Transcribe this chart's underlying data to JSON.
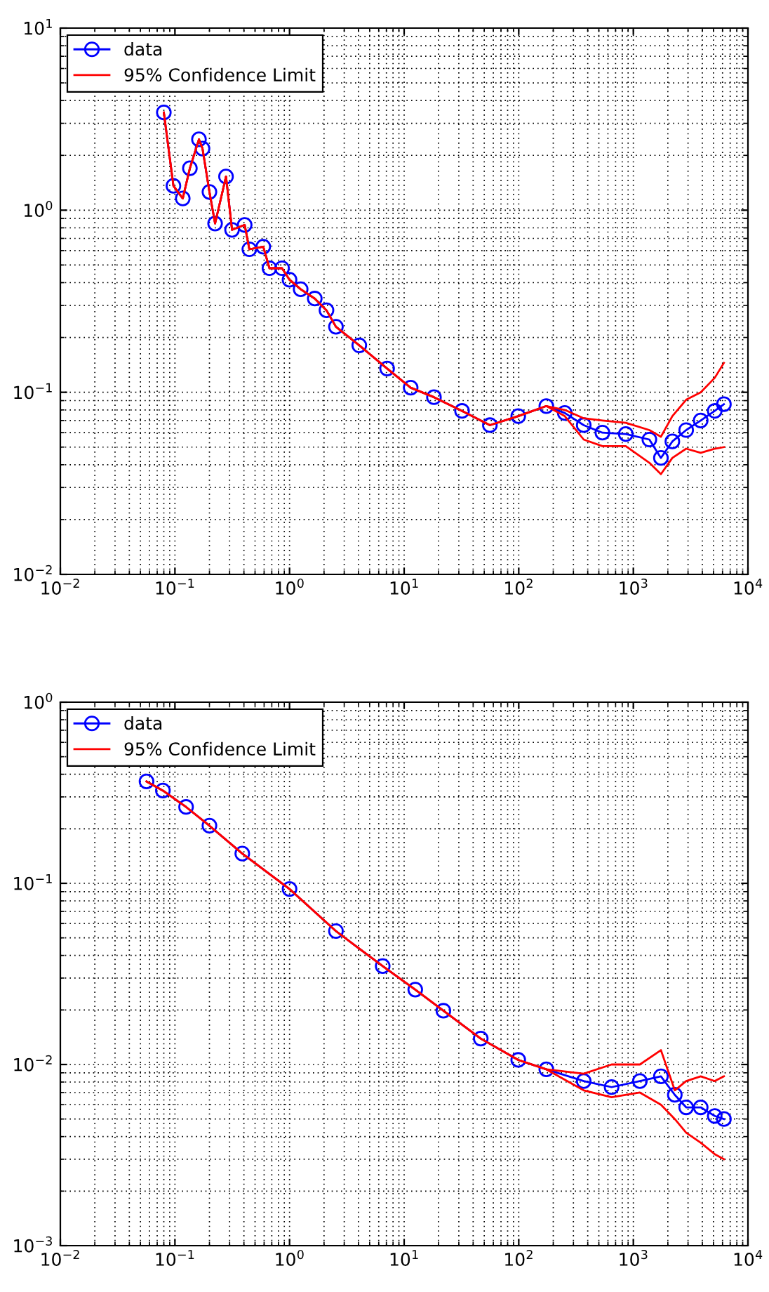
{
  "chart_data": [
    {
      "type": "line",
      "log": "xy",
      "grid": true,
      "legend": "top left",
      "xlim": [
        0.01,
        10000
      ],
      "ylim": [
        0.01,
        10
      ],
      "xticks": [
        {
          "value": 0.01,
          "label": "10$^{−2}$"
        },
        {
          "value": 0.1,
          "label": "10$^{−1}$"
        },
        {
          "value": 1,
          "label": "10$^{0}$"
        },
        {
          "value": 10,
          "label": "10$^{1}$"
        },
        {
          "value": 100,
          "label": "10$^{2}$"
        },
        {
          "value": 1000,
          "label": "10$^{3}$"
        },
        {
          "value": 10000,
          "label": "10$^{4}$"
        }
      ],
      "yticks": [
        {
          "value": 0.01,
          "label": "10$^{−2}$"
        },
        {
          "value": 0.1,
          "label": "10$^{−1}$"
        },
        {
          "value": 1,
          "label": "10$^{0}$"
        },
        {
          "value": 10,
          "label": "10$^{1}$"
        }
      ],
      "x": [
        0.08,
        0.097,
        0.117,
        0.135,
        0.162,
        0.174,
        0.2,
        0.224,
        0.279,
        0.315,
        0.406,
        0.446,
        0.59,
        0.668,
        0.86,
        1.0,
        1.25,
        1.66,
        2.1,
        2.54,
        4.06,
        7.1,
        11.4,
        18.2,
        32,
        56,
        99,
        174,
        252,
        369,
        537,
        859,
        1380,
        1740,
        2190,
        2890,
        3870,
        5130,
        6170
      ],
      "series": [
        {
          "name": "data",
          "color": "#0000ff",
          "marker": "circle",
          "values": [
            3.44,
            1.36,
            1.16,
            1.7,
            2.45,
            2.18,
            1.26,
            0.845,
            1.53,
            0.78,
            0.83,
            0.61,
            0.63,
            0.48,
            0.48,
            0.415,
            0.368,
            0.327,
            0.282,
            0.229,
            0.181,
            0.135,
            0.106,
            0.094,
            0.079,
            0.066,
            0.074,
            0.084,
            0.077,
            0.066,
            0.06,
            0.059,
            0.055,
            0.0436,
            0.0537,
            0.062,
            0.07,
            0.079,
            0.086
          ]
        },
        {
          "name": "95% Confidence Limit",
          "color": "#ff0000",
          "marker": "none",
          "values": [
            3.44,
            1.36,
            1.16,
            1.7,
            2.45,
            2.18,
            1.26,
            0.845,
            1.53,
            0.78,
            0.83,
            0.61,
            0.63,
            0.48,
            0.48,
            0.415,
            0.368,
            0.327,
            0.282,
            0.229,
            0.181,
            0.135,
            0.106,
            0.094,
            0.079,
            0.066,
            0.074,
            0.084,
            0.08,
            0.072,
            0.07,
            0.068,
            0.062,
            0.057,
            0.074,
            0.091,
            0.1,
            0.12,
            0.145
          ]
        },
        {
          "color": "#ff0000",
          "marker": "none",
          "values": [
            3.44,
            1.36,
            1.16,
            1.7,
            2.45,
            2.18,
            1.26,
            0.845,
            1.53,
            0.78,
            0.83,
            0.61,
            0.63,
            0.48,
            0.48,
            0.415,
            0.368,
            0.327,
            0.282,
            0.229,
            0.181,
            0.135,
            0.106,
            0.094,
            0.079,
            0.066,
            0.074,
            0.084,
            0.074,
            0.055,
            0.0506,
            0.0506,
            0.041,
            0.0355,
            0.0436,
            0.049,
            0.0465,
            0.049,
            0.05
          ]
        }
      ]
    },
    {
      "type": "line",
      "log": "xy",
      "grid": true,
      "legend": "top left",
      "xlim": [
        0.01,
        10000
      ],
      "ylim": [
        0.001,
        1
      ],
      "xticks": [
        {
          "value": 0.01,
          "label": "10$^{−2}$"
        },
        {
          "value": 0.1,
          "label": "10$^{−1}$"
        },
        {
          "value": 1,
          "label": "10$^{0}$"
        },
        {
          "value": 10,
          "label": "10$^{1}$"
        },
        {
          "value": 100,
          "label": "10$^{2}$"
        },
        {
          "value": 1000,
          "label": "10$^{3}$"
        },
        {
          "value": 10000,
          "label": "10$^{4}$"
        }
      ],
      "yticks": [
        {
          "value": 0.001,
          "label": "10$^{−3}$"
        },
        {
          "value": 0.01,
          "label": "10$^{−2}$"
        },
        {
          "value": 0.1,
          "label": "10$^{−1}$"
        },
        {
          "value": 1,
          "label": "10$^{0}$"
        }
      ],
      "x": [
        0.0565,
        0.0785,
        0.125,
        0.2,
        0.387,
        1.0,
        2.54,
        6.5,
        12.5,
        22,
        46.6,
        99,
        174,
        369,
        646,
        1140,
        1740,
        2300,
        2890,
        3870,
        5130,
        6170
      ],
      "series": [
        {
          "name": "data",
          "color": "#0000ff",
          "marker": "circle",
          "values": [
            0.365,
            0.325,
            0.264,
            0.208,
            0.146,
            0.093,
            0.0545,
            0.0349,
            0.0259,
            0.0198,
            0.0139,
            0.0106,
            0.0094,
            0.0081,
            0.0075,
            0.0081,
            0.0086,
            0.0068,
            0.0058,
            0.0058,
            0.0052,
            0.005
          ]
        },
        {
          "name": "95% Confidence Limit",
          "color": "#ff0000",
          "marker": "none",
          "values": [
            0.365,
            0.325,
            0.264,
            0.208,
            0.146,
            0.093,
            0.0545,
            0.0349,
            0.0259,
            0.0198,
            0.0139,
            0.0106,
            0.0094,
            0.0089,
            0.01,
            0.01,
            0.012,
            0.0072,
            0.0081,
            0.0086,
            0.0081,
            0.0086
          ]
        },
        {
          "color": "#ff0000",
          "marker": "none",
          "values": [
            0.365,
            0.325,
            0.264,
            0.208,
            0.146,
            0.093,
            0.0545,
            0.0349,
            0.0259,
            0.0198,
            0.0139,
            0.0106,
            0.0094,
            0.0072,
            0.0066,
            0.007,
            0.006,
            0.005,
            0.0042,
            0.0037,
            0.0032,
            0.003
          ]
        }
      ]
    }
  ]
}
